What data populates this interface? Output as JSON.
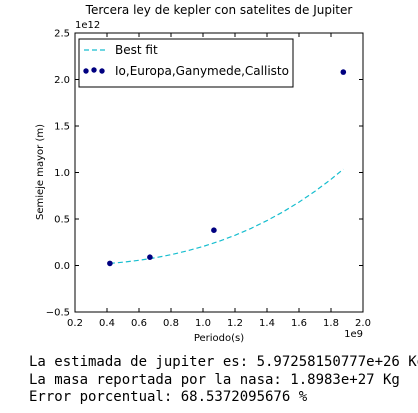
{
  "chart_data": {
    "type": "scatter",
    "title": "Tercera ley de kepler con satelites de Jupiter",
    "xlabel": "Periodo(s)",
    "ylabel": "Semieje mayor (m)",
    "x_offset_text": "1e9",
    "y_offset_text": "1e12",
    "xlim": [
      0.2,
      2.0
    ],
    "ylim": [
      -0.5,
      2.5
    ],
    "x_unit": 1000000000.0,
    "y_unit": 1000000000000.0,
    "xticks": [
      0.2,
      0.4,
      0.6,
      0.8,
      1.0,
      1.2,
      1.4,
      1.6,
      1.8,
      2.0
    ],
    "yticks": [
      -0.5,
      0.0,
      0.5,
      1.0,
      1.5,
      2.0,
      2.5
    ],
    "xtick_labels": [
      "0.2",
      "0.4",
      "0.6",
      "0.8",
      "1.0",
      "1.2",
      "1.4",
      "1.6",
      "1.8",
      "2.0"
    ],
    "ytick_labels": [
      "−0.5",
      "0.0",
      "0.5",
      "1.0",
      "1.5",
      "2.0",
      "2.5"
    ],
    "series": [
      {
        "name": "Io,Europa,Ganymede,Callisto",
        "kind": "scatter",
        "color": "#000080",
        "x": [
          0.418,
          0.668,
          1.068,
          1.877
        ],
        "y": [
          0.0225,
          0.0896,
          0.38,
          2.08
        ]
      },
      {
        "name": "Best fit",
        "kind": "line",
        "style": "dashed",
        "color": "#17BECF",
        "x": [
          0.418,
          0.5,
          0.6,
          0.7,
          0.8,
          0.9,
          1.0,
          1.1,
          1.2,
          1.3,
          1.4,
          1.5,
          1.6,
          1.7,
          1.8,
          1.877
        ],
        "y": [
          0.0225,
          0.0357,
          0.0564,
          0.0831,
          0.1163,
          0.1565,
          0.2043,
          0.2603,
          0.325,
          0.399,
          0.4827,
          0.5768,
          0.6818,
          0.7982,
          0.9266,
          1.0356
        ]
      }
    ],
    "legend_position": "top-left",
    "grid": false
  },
  "output": {
    "line1": "La estimada de jupiter es: 5.97258150777e+26 Kg",
    "line2": "La masa reportada por la nasa: 1.8983e+27 Kg",
    "line3": "Error porcentual: 68.5372095676 %"
  }
}
